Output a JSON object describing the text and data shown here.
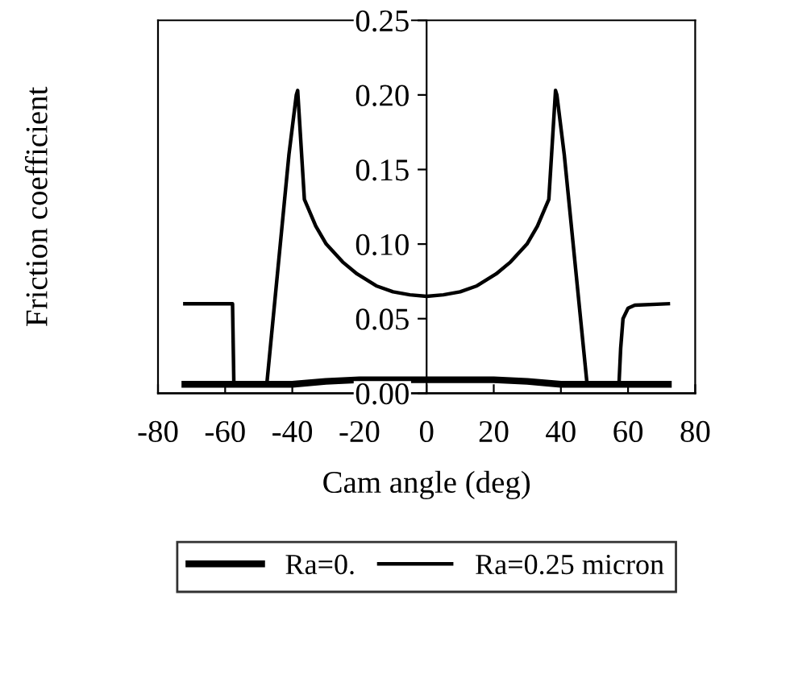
{
  "chart_data": {
    "type": "line",
    "xlabel": "Cam angle (deg)",
    "ylabel": "Friction coefficient",
    "xlim": [
      -80,
      80
    ],
    "xticks": [
      -80,
      -60,
      -40,
      -20,
      0,
      20,
      40,
      60,
      80
    ],
    "ylim": [
      0,
      0.25
    ],
    "yticks": [
      {
        "value": 0,
        "label": "0.00"
      },
      {
        "value": 0.05,
        "label": "0.05"
      },
      {
        "value": 0.1,
        "label": "0.10"
      },
      {
        "value": 0.15,
        "label": "0.15"
      },
      {
        "value": 0.2,
        "label": "0.20"
      },
      {
        "value": 0.25,
        "label": "0.25"
      }
    ],
    "grid": false,
    "legend": "bottom",
    "marker": "none",
    "line_style": "solid",
    "series": [
      {
        "name": "Ra=0.",
        "color": "#000000",
        "x": [
          -72,
          -60,
          -50,
          -40,
          -30,
          -20,
          -10,
          0,
          10,
          20,
          30,
          40,
          50,
          60,
          72
        ],
        "values": [
          0.006,
          0.006,
          0.006,
          0.006,
          0.008,
          0.009,
          0.009,
          0.009,
          0.009,
          0.009,
          0.008,
          0.006,
          0.006,
          0.006,
          0.006
        ]
      },
      {
        "name": "Ra=0.25 micron",
        "color": "#000000",
        "x": [
          -72,
          -57.8,
          -57.4,
          -47.6,
          -41,
          -38.8,
          -38.4,
          -36.4,
          -33,
          -29.9,
          -25,
          -20.7,
          -15,
          -10,
          -5,
          0,
          5,
          10,
          15,
          20.7,
          25,
          29.9,
          33,
          36.4,
          38.4,
          38.8,
          41,
          47.8,
          57.3,
          57.8,
          58.5,
          60,
          62,
          72
        ],
        "values": [
          0.06,
          0.06,
          0.006,
          0.006,
          0.16,
          0.2,
          0.203,
          0.13,
          0.112,
          0.1,
          0.088,
          0.08,
          0.072,
          0.068,
          0.066,
          0.065,
          0.066,
          0.068,
          0.072,
          0.08,
          0.088,
          0.1,
          0.112,
          0.13,
          0.203,
          0.2,
          0.16,
          0.006,
          0.006,
          0.03,
          0.05,
          0.057,
          0.059,
          0.06
        ]
      }
    ]
  }
}
